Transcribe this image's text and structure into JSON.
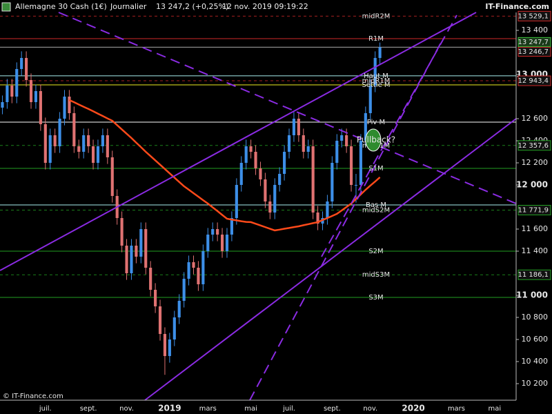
{
  "chart_data": {
    "type": "candlestick",
    "title": "Allemagne 30 Cash (1€)",
    "period": "Journalier",
    "last": "13 247,2 (+0,25%)",
    "timestamp": "12 nov. 2019 09:19:22",
    "source": "IT-Finance.com",
    "copyright": "© IT-Finance.com",
    "annotation": "Pullback?",
    "up_color": "#3d8fe8",
    "down_color": "#e07272",
    "ylim": [
      10050,
      13562.5
    ],
    "yticks": [
      {
        "value": 10200,
        "label": "10 200"
      },
      {
        "value": 10400,
        "label": "10 400"
      },
      {
        "value": 10600,
        "label": "10 600"
      },
      {
        "value": 10800,
        "label": "10 800"
      },
      {
        "value": 11000,
        "label": "11 000"
      },
      {
        "value": 11400,
        "label": "11 400"
      },
      {
        "value": 11600,
        "label": "11 600"
      },
      {
        "value": 12000,
        "label": "12 000"
      },
      {
        "value": 12200,
        "label": "12 200"
      },
      {
        "value": 12400,
        "label": "12 400"
      },
      {
        "value": 12600,
        "label": "12 600"
      },
      {
        "value": 13000,
        "label": "13 000"
      },
      {
        "value": 13400,
        "label": "13 400"
      }
    ],
    "categories": [
      null,
      null,
      null,
      null,
      null,
      null,
      null,
      null,
      null,
      "juil.",
      null,
      null,
      null,
      null,
      null,
      null,
      null,
      null,
      "sept.",
      null,
      null,
      null,
      null,
      null,
      null,
      null,
      "nov.",
      null,
      null,
      null,
      null,
      null,
      null,
      null,
      null,
      "2019",
      null,
      null,
      null,
      null,
      null,
      null,
      null,
      "mars",
      null,
      null,
      null,
      null,
      null,
      null,
      null,
      null,
      "mai",
      null,
      null,
      null,
      null,
      null,
      null,
      null,
      "juil.",
      null,
      null,
      null,
      null,
      null,
      null,
      null,
      null,
      "sept.",
      null,
      null,
      null,
      null,
      null,
      null,
      null,
      "nov.",
      null,
      null,
      null,
      null,
      null,
      null,
      null,
      null,
      "2020",
      null,
      null,
      null,
      null,
      null,
      null,
      null,
      null,
      "mars",
      null,
      null,
      null,
      null,
      null,
      null,
      null,
      "mai",
      null,
      null,
      null,
      null
    ],
    "open": [
      12700,
      12750,
      12900,
      12800,
      13050,
      13150,
      12950,
      12750,
      12850,
      12550,
      12200,
      12450,
      12350,
      12600,
      12800,
      12650,
      12350,
      12300,
      12450,
      12350,
      12200,
      12350,
      12450,
      12250,
      11900,
      11700,
      11450,
      11200,
      11450,
      11350,
      11600,
      11250,
      11050,
      10900,
      10650,
      10450,
      10600,
      10800,
      10950,
      11150,
      11300,
      11250,
      11100,
      11400,
      11550,
      11600,
      11550,
      11400,
      11550,
      11700,
      12000,
      12200,
      12350,
      12300,
      12150,
      12050,
      11850,
      11750,
      12000,
      12100,
      12300,
      12450,
      12600,
      12450,
      12300,
      12350,
      11750,
      11650,
      11700,
      11850,
      12200,
      12400,
      12450,
      12350,
      12000,
      12000,
      12400,
      12650,
      12900,
      13150,
      null,
      null,
      null,
      null,
      null,
      null,
      null,
      null,
      null,
      null,
      null,
      null,
      null,
      null,
      null,
      null,
      null,
      null,
      null,
      null,
      null,
      null,
      null,
      null,
      null,
      null,
      null,
      null
    ],
    "high": [
      12810,
      12960,
      12960,
      13110,
      13210,
      13210,
      13010,
      12910,
      12910,
      12610,
      12510,
      12510,
      12660,
      12860,
      12860,
      12710,
      12410,
      12510,
      12510,
      12410,
      12410,
      12510,
      12510,
      12310,
      11960,
      11760,
      11510,
      11510,
      11510,
      11660,
      11660,
      11310,
      11110,
      10960,
      10710,
      10660,
      10860,
      11010,
      11210,
      11360,
      11360,
      11310,
      11460,
      11610,
      11660,
      11660,
      11610,
      11610,
      11760,
      12060,
      12260,
      12410,
      12410,
      12360,
      12210,
      12110,
      11910,
      12060,
      12160,
      12360,
      12510,
      12660,
      12660,
      12510,
      12410,
      12410,
      11810,
      11760,
      11910,
      12260,
      12460,
      12510,
      12510,
      12410,
      12100,
      12460,
      12710,
      12960,
      13210,
      13290,
      null,
      null,
      null,
      null,
      null,
      null,
      null,
      null,
      null,
      null,
      null,
      null,
      null,
      null,
      null,
      null,
      null,
      null,
      null,
      null,
      null,
      null,
      null,
      null,
      null,
      null,
      null,
      null
    ],
    "low": [
      12640,
      12690,
      12740,
      12740,
      12990,
      12890,
      12690,
      12690,
      12490,
      12140,
      12140,
      12290,
      12290,
      12540,
      12590,
      12290,
      12240,
      12240,
      12290,
      12140,
      12140,
      12290,
      12190,
      11840,
      11640,
      11390,
      11140,
      11140,
      11290,
      11290,
      11190,
      10990,
      10840,
      10590,
      10280,
      10390,
      10540,
      10740,
      10890,
      11090,
      11190,
      11040,
      11040,
      11340,
      11490,
      11490,
      11340,
      11340,
      11490,
      11640,
      11940,
      12140,
      12240,
      12090,
      11990,
      11790,
      11690,
      11690,
      11940,
      12040,
      12240,
      12390,
      12390,
      12240,
      12240,
      11690,
      11590,
      11590,
      11640,
      11790,
      12140,
      12340,
      12290,
      11940,
      11840,
      11940,
      12340,
      12590,
      12840,
      13090,
      null,
      null,
      null,
      null,
      null,
      null,
      null,
      null,
      null,
      null,
      null,
      null,
      null,
      null,
      null,
      null,
      null,
      null,
      null,
      null,
      null,
      null,
      null,
      null,
      null,
      null,
      null,
      null
    ],
    "close": [
      12750,
      12900,
      12800,
      13050,
      13150,
      12950,
      12750,
      12850,
      12550,
      12200,
      12450,
      12350,
      12600,
      12800,
      12650,
      12350,
      12300,
      12450,
      12350,
      12200,
      12350,
      12450,
      12250,
      11900,
      11700,
      11450,
      11200,
      11450,
      11350,
      11600,
      11250,
      11050,
      10900,
      10650,
      10450,
      10600,
      10800,
      10950,
      11150,
      11300,
      11250,
      11100,
      11400,
      11550,
      11600,
      11550,
      11400,
      11550,
      11700,
      12000,
      12200,
      12350,
      12300,
      12150,
      12050,
      11850,
      11750,
      12000,
      12100,
      12300,
      12450,
      12600,
      12450,
      12300,
      12350,
      11750,
      11650,
      11700,
      11850,
      12200,
      12400,
      12450,
      12350,
      12000,
      12000,
      12400,
      12650,
      12900,
      13150,
      13247.2,
      null,
      null,
      null,
      null,
      null,
      null,
      null,
      null,
      null,
      null,
      null,
      null,
      null,
      null,
      null,
      null,
      null,
      null,
      null,
      null,
      null,
      null,
      null,
      null,
      null,
      null,
      null,
      null
    ],
    "moving_average": {
      "color": "#ff4a1a",
      "values": [
        null,
        null,
        null,
        null,
        null,
        null,
        null,
        null,
        null,
        null,
        null,
        null,
        null,
        null,
        12769,
        12749,
        12728,
        12708,
        12688,
        12667,
        12645,
        12624,
        12602,
        12581,
        12542,
        12503,
        12464,
        12425,
        12383,
        12342,
        12300,
        12261,
        12222,
        12183,
        12144,
        12105,
        12066,
        12027,
        11988,
        11957,
        11925,
        11894,
        11862,
        11831,
        11797,
        11763,
        11728,
        11694,
        11686,
        11679,
        11671,
        11665,
        11663,
        11648,
        11633,
        11618,
        11603,
        11588,
        11595,
        11603,
        11610,
        11618,
        11625,
        11635,
        11644,
        11654,
        11663,
        11682,
        11700,
        11719,
        11738,
        11769,
        11800,
        11831,
        11873,
        11914,
        11956,
        11994,
        12031,
        12069,
        null,
        null,
        null,
        null,
        null,
        null,
        null,
        null,
        null,
        null,
        null,
        null,
        null,
        null,
        null,
        null,
        null,
        null,
        null,
        null,
        null,
        null,
        null,
        null,
        null,
        null,
        null,
        null
      ]
    },
    "levels": [
      {
        "name": "midR2M",
        "value": 13529.1,
        "value_label": "13 529,1",
        "color": "#d02828",
        "style": "dashed"
      },
      {
        "name": "R1M",
        "value": 13325,
        "color": "#d02828",
        "style": "solid"
      },
      {
        "name": "Haut M",
        "value": 12988,
        "color": "#a8f0f0",
        "style": "solid"
      },
      {
        "name": "midR1M",
        "value": 12943.4,
        "value_label": "12 943,4",
        "color": "#d02828",
        "style": "dashed"
      },
      {
        "name": "Settle M",
        "value": 12906,
        "color": "#f0f020",
        "style": "solid"
      },
      {
        "name": "Piv M",
        "value": 12569,
        "color": "#ffffff",
        "style": "solid"
      },
      {
        "name": "midS1M",
        "value": 12357.6,
        "value_label": "12 357,6",
        "color": "#22a022",
        "style": "dashed"
      },
      {
        "name": "S1M",
        "value": 12150,
        "color": "#22a022",
        "style": "solid"
      },
      {
        "name": "Bas M",
        "value": 11819,
        "color": "#a8f0f0",
        "style": "solid"
      },
      {
        "name": "midS2M",
        "value": 11771.9,
        "value_label": "11 771,9",
        "color": "#22a022",
        "style": "dashed"
      },
      {
        "name": "S2M",
        "value": 11400,
        "color": "#22a022",
        "style": "solid"
      },
      {
        "name": "midS3M",
        "value": 11186.1,
        "value_label": "11 186,1",
        "color": "#22a022",
        "style": "dashed"
      },
      {
        "name": "S3M",
        "value": 10981,
        "color": "#22a022",
        "style": "solid"
      }
    ],
    "price_line": {
      "value": 13247.7,
      "value_label": "13 247,7",
      "color": "#3cc03c"
    },
    "last_price": {
      "value": 13246.7,
      "value_label": "13 246,7",
      "color": "#d02828"
    }
  }
}
